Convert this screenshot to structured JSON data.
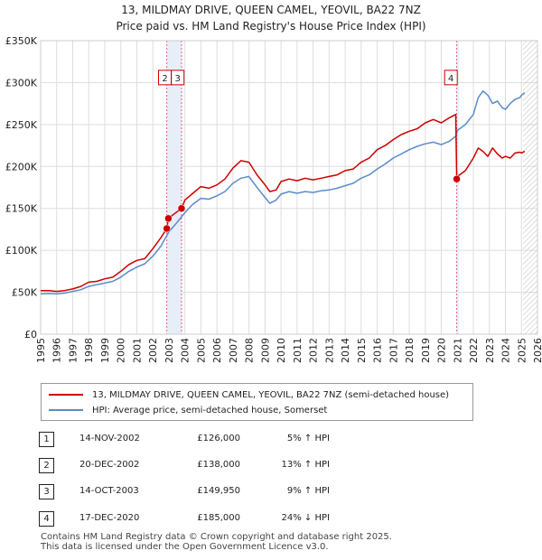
{
  "title": {
    "line1": "13, MILDMAY DRIVE, QUEEN CAMEL, YEOVIL, BA22 7NZ",
    "line2": "Price paid vs. HM Land Registry's House Price Index (HPI)"
  },
  "colors": {
    "price_line": "#cc0000",
    "hpi_line": "#5b8cc8",
    "sale_vline": "#e06080",
    "band": "#e8eef8",
    "grid": "#dddddd"
  },
  "legend": {
    "price_label": "13, MILDMAY DRIVE, QUEEN CAMEL, YEOVIL, BA22 7NZ (semi-detached house)",
    "hpi_label": "HPI: Average price, semi-detached house, Somerset"
  },
  "sales": [
    {
      "num": "1",
      "date": "14-NOV-2002",
      "price": "£126,000",
      "hpi": "5% ↑ HPI"
    },
    {
      "num": "2",
      "date": "20-DEC-2002",
      "price": "£138,000",
      "hpi": "13% ↑ HPI"
    },
    {
      "num": "3",
      "date": "14-OCT-2003",
      "price": "£149,950",
      "hpi": "9% ↑ HPI"
    },
    {
      "num": "4",
      "date": "17-DEC-2020",
      "price": "£185,000",
      "hpi": "24% ↓ HPI"
    }
  ],
  "footer": {
    "line1": "Contains HM Land Registry data © Crown copyright and database right 2025.",
    "line2": "This data is licensed under the Open Government Licence v3.0."
  },
  "chart_data": {
    "type": "line",
    "title": "Price paid vs. HM Land Registry's House Price Index (HPI)",
    "xlabel": "",
    "ylabel": "",
    "xlim": [
      1995,
      2026
    ],
    "ylim": [
      0,
      350000
    ],
    "x_ticks": [
      1995,
      1996,
      1997,
      1998,
      1999,
      2000,
      2001,
      2002,
      2003,
      2004,
      2005,
      2006,
      2007,
      2008,
      2009,
      2010,
      2011,
      2012,
      2013,
      2014,
      2015,
      2016,
      2017,
      2018,
      2019,
      2020,
      2021,
      2022,
      2023,
      2024,
      2025,
      2026
    ],
    "y_ticks": [
      {
        "value": 0,
        "label": "£0"
      },
      {
        "value": 50000,
        "label": "£50K"
      },
      {
        "value": 100000,
        "label": "£100K"
      },
      {
        "value": 150000,
        "label": "£150K"
      },
      {
        "value": 200000,
        "label": "£200K"
      },
      {
        "value": 250000,
        "label": "£250K"
      },
      {
        "value": 300000,
        "label": "£300K"
      },
      {
        "value": 350000,
        "label": "£350K"
      }
    ],
    "bands": [
      {
        "from": 2002.87,
        "to": 2003.79
      },
      {
        "from": 2020.96,
        "to": 2021.1
      }
    ],
    "hatch_from": 2025.1,
    "markers": [
      {
        "num": "1",
        "x": 2002.87,
        "y": 126000
      },
      {
        "num": "2",
        "x": 2002.97,
        "y": 138000
      },
      {
        "num": "3",
        "x": 2003.79,
        "y": 149950
      },
      {
        "num": "4",
        "x": 2020.96,
        "y": 185000
      }
    ],
    "marker_boxes": [
      {
        "label": "2",
        "x": 2002.75,
        "y": 306000
      },
      {
        "label": "3",
        "x": 2003.55,
        "y": 306000
      },
      {
        "label": "4",
        "x": 2020.6,
        "y": 306000
      }
    ],
    "series": [
      {
        "name": "13, MILDMAY DRIVE, QUEEN CAMEL, YEOVIL, BA22 7NZ (semi-detached house)",
        "color": "#cc0000",
        "x": [
          1995,
          1995.5,
          1996,
          1996.5,
          1997,
          1997.5,
          1998,
          1998.5,
          1999,
          1999.5,
          2000,
          2000.5,
          2001,
          2001.5,
          2002,
          2002.5,
          2002.87,
          2002.97,
          2003.3,
          2003.79,
          2004,
          2004.5,
          2005,
          2005.5,
          2006,
          2006.5,
          2007,
          2007.5,
          2008,
          2008.5,
          2009,
          2009.3,
          2009.7,
          2010,
          2010.5,
          2011,
          2011.5,
          2012,
          2012.5,
          2013,
          2013.5,
          2014,
          2014.5,
          2015,
          2015.5,
          2016,
          2016.5,
          2017,
          2017.5,
          2018,
          2018.5,
          2019,
          2019.5,
          2020,
          2020.5,
          2020.9,
          2020.96,
          2021,
          2021.5,
          2022,
          2022.3,
          2022.6,
          2022.9,
          2023.2,
          2023.5,
          2023.8,
          2024,
          2024.3,
          2024.6,
          2024.9,
          2025,
          2025.2
        ],
        "values": [
          52000,
          52000,
          51000,
          52000,
          54000,
          57000,
          62000,
          63000,
          66000,
          68000,
          75000,
          83000,
          88000,
          90000,
          102000,
          115000,
          126000,
          138000,
          143000,
          149950,
          160000,
          168000,
          176000,
          174000,
          178000,
          185000,
          198000,
          207000,
          205000,
          190000,
          178000,
          170000,
          172000,
          182000,
          185000,
          183000,
          186000,
          184000,
          186000,
          188000,
          190000,
          195000,
          197000,
          205000,
          210000,
          220000,
          225000,
          232000,
          238000,
          242000,
          245000,
          252000,
          256000,
          252000,
          258000,
          262000,
          185000,
          188000,
          195000,
          210000,
          222000,
          218000,
          212000,
          222000,
          215000,
          210000,
          212000,
          210000,
          216000,
          217000,
          216000,
          218000
        ]
      },
      {
        "name": "HPI: Average price, semi-detached house, Somerset",
        "color": "#5b8cc8",
        "x": [
          1995,
          1995.5,
          1996,
          1996.5,
          1997,
          1997.5,
          1998,
          1998.5,
          1999,
          1999.5,
          2000,
          2000.5,
          2001,
          2001.5,
          2002,
          2002.5,
          2003,
          2003.5,
          2004,
          2004.5,
          2005,
          2005.5,
          2006,
          2006.5,
          2007,
          2007.5,
          2008,
          2008.5,
          2009,
          2009.3,
          2009.7,
          2010,
          2010.5,
          2011,
          2011.5,
          2012,
          2012.5,
          2013,
          2013.5,
          2014,
          2014.5,
          2015,
          2015.5,
          2016,
          2016.5,
          2017,
          2017.5,
          2018,
          2018.5,
          2019,
          2019.5,
          2020,
          2020.5,
          2020.9,
          2021,
          2021.5,
          2022,
          2022.3,
          2022.6,
          2022.9,
          2023.2,
          2023.5,
          2023.8,
          2024,
          2024.3,
          2024.6,
          2024.9,
          2025,
          2025.2
        ],
        "values": [
          48000,
          48500,
          48000,
          49000,
          51000,
          53000,
          57000,
          59000,
          61000,
          63000,
          68000,
          75000,
          80000,
          84000,
          93000,
          105000,
          122000,
          133000,
          145000,
          155000,
          162000,
          161000,
          165000,
          170000,
          180000,
          186000,
          188000,
          175000,
          163000,
          156000,
          160000,
          167000,
          170000,
          168000,
          170000,
          169000,
          171000,
          172000,
          174000,
          177000,
          180000,
          186000,
          190000,
          197000,
          203000,
          210000,
          215000,
          220000,
          224000,
          227000,
          229000,
          226000,
          230000,
          236000,
          243000,
          250000,
          262000,
          282000,
          290000,
          285000,
          275000,
          278000,
          270000,
          268000,
          275000,
          280000,
          282000,
          285000,
          288000
        ]
      }
    ]
  }
}
